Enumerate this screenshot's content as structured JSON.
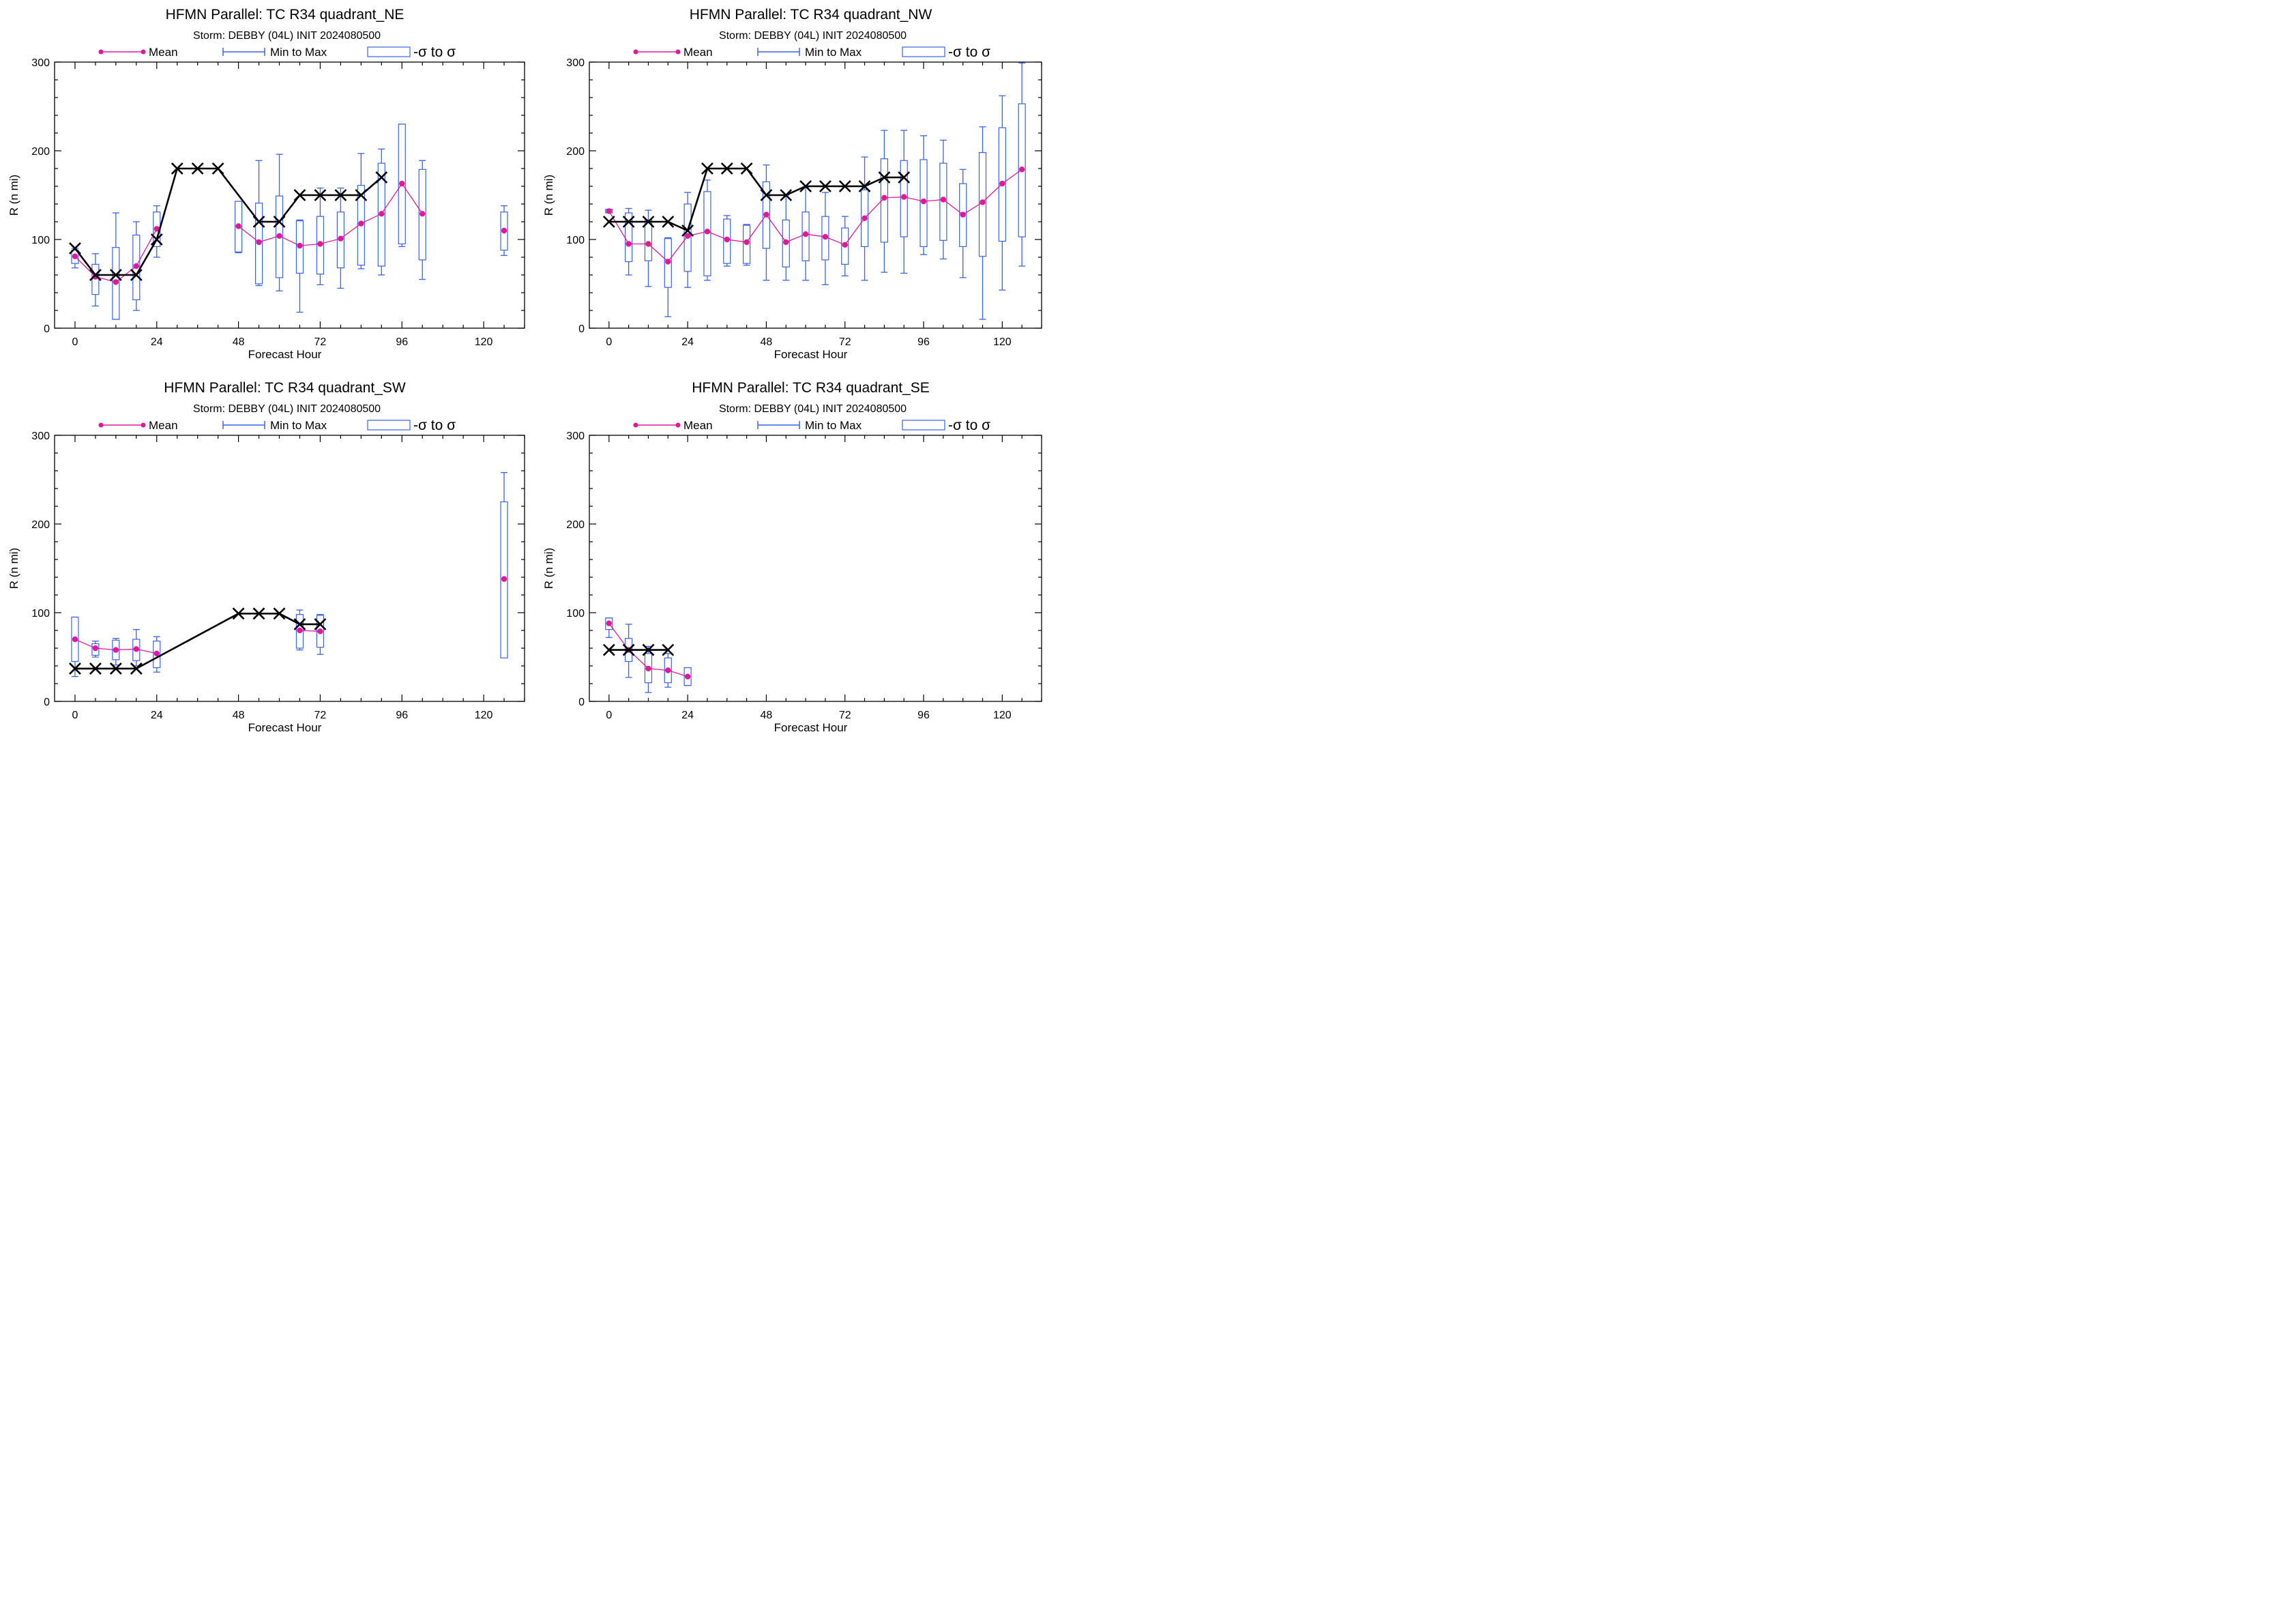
{
  "legend": {
    "mean_label": "Mean",
    "minmax_label": "Min to Max",
    "sigma_label": "-σ to σ"
  },
  "colors": {
    "mean": "#e0199a",
    "box": "#3a62e6",
    "official": "#000000",
    "axis": "#000000"
  },
  "chart_data": [
    {
      "id": "ne",
      "type": "box",
      "title": "HFMN Parallel: TC  R34 quadrant_NE",
      "subtitle": "Storm: DEBBY (04L) INIT 2024080500",
      "xlabel": "Forecast Hour",
      "ylabel": "R (n mi)",
      "xlim": [
        -6,
        132
      ],
      "ylim": [
        0,
        300
      ],
      "xticks": [
        0,
        24,
        48,
        72,
        96,
        120
      ],
      "yticks": [
        0,
        100,
        200,
        300
      ],
      "grid": false,
      "legend_position": "top",
      "series": [
        {
          "name": "Mean",
          "kind": "mean",
          "x": [
            0,
            6,
            12,
            18,
            24,
            48,
            54,
            60,
            66,
            72,
            78,
            84,
            90,
            96,
            102,
            126
          ],
          "y": [
            81,
            58,
            52,
            70,
            112,
            115,
            97,
            104,
            93,
            95,
            101,
            118,
            129,
            163,
            129,
            110
          ]
        },
        {
          "name": "Min to Max",
          "kind": "range",
          "x": [
            0,
            6,
            12,
            18,
            24,
            48,
            54,
            60,
            66,
            72,
            78,
            84,
            90,
            96,
            102,
            126
          ],
          "min": [
            68,
            25,
            10,
            20,
            80,
            85,
            48,
            42,
            18,
            49,
            45,
            67,
            60,
            92,
            55,
            82
          ],
          "max": [
            90,
            84,
            130,
            120,
            138,
            143,
            189,
            196,
            122,
            158,
            158,
            197,
            202,
            230,
            189,
            138
          ]
        },
        {
          "name": "-σ to σ",
          "kind": "sigma",
          "x": [
            0,
            6,
            12,
            18,
            24,
            48,
            54,
            60,
            66,
            72,
            78,
            84,
            90,
            96,
            102,
            126
          ],
          "low": [
            73,
            38,
            10,
            32,
            92,
            86,
            50,
            57,
            62,
            61,
            68,
            71,
            70,
            95,
            77,
            88
          ],
          "high": [
            88,
            72,
            91,
            105,
            131,
            143,
            141,
            149,
            121,
            126,
            131,
            161,
            186,
            230,
            179,
            131
          ]
        },
        {
          "kind": "official",
          "x": [
            0,
            6,
            12,
            18,
            24,
            30,
            36,
            42,
            54,
            60,
            66,
            72,
            78,
            84,
            90
          ],
          "y": [
            90,
            60,
            60,
            60,
            100,
            180,
            180,
            180,
            120,
            120,
            150,
            150,
            150,
            150,
            170
          ]
        }
      ]
    },
    {
      "id": "nw",
      "type": "box",
      "title": "HFMN Parallel: TC  R34 quadrant_NW",
      "subtitle": "Storm: DEBBY (04L) INIT 2024080500",
      "xlabel": "Forecast Hour",
      "ylabel": "R (n mi)",
      "xlim": [
        -6,
        132
      ],
      "ylim": [
        0,
        300
      ],
      "xticks": [
        0,
        24,
        48,
        72,
        96,
        120
      ],
      "yticks": [
        0,
        100,
        200,
        300
      ],
      "grid": false,
      "legend_position": "top",
      "series": [
        {
          "name": "Mean",
          "kind": "mean",
          "x": [
            0,
            6,
            12,
            18,
            24,
            30,
            36,
            42,
            48,
            54,
            60,
            66,
            72,
            78,
            84,
            90,
            96,
            102,
            108,
            114,
            120,
            126
          ],
          "y": [
            132,
            95,
            95,
            75,
            104,
            109,
            100,
            97,
            128,
            97,
            106,
            103,
            94,
            124,
            147,
            148,
            143,
            145,
            128,
            142,
            163,
            179
          ]
        },
        {
          "name": "Min to Max",
          "kind": "range",
          "x": [
            0,
            6,
            12,
            18,
            24,
            30,
            36,
            42,
            48,
            54,
            60,
            66,
            72,
            78,
            84,
            90,
            96,
            102,
            108,
            114,
            120,
            126
          ],
          "min": [
            131,
            60,
            47,
            13,
            46,
            54,
            70,
            71,
            54,
            54,
            54,
            49,
            59,
            54,
            63,
            62,
            83,
            78,
            57,
            10,
            43,
            70
          ],
          "max": [
            134,
            135,
            133,
            102,
            153,
            167,
            127,
            117,
            184,
            150,
            159,
            153,
            126,
            193,
            223,
            223,
            217,
            212,
            179,
            227,
            262,
            299
          ]
        },
        {
          "name": "-σ to σ",
          "kind": "sigma",
          "x": [
            0,
            6,
            12,
            18,
            24,
            30,
            36,
            42,
            48,
            54,
            60,
            66,
            72,
            78,
            84,
            90,
            96,
            102,
            108,
            114,
            120,
            126
          ],
          "low": [
            130,
            75,
            76,
            46,
            64,
            59,
            73,
            73,
            90,
            69,
            76,
            77,
            72,
            92,
            97,
            103,
            92,
            99,
            92,
            81,
            98,
            103
          ],
          "high": [
            134,
            130,
            122,
            101,
            140,
            154,
            123,
            116,
            165,
            122,
            131,
            126,
            113,
            156,
            191,
            189,
            190,
            186,
            163,
            198,
            226,
            253
          ]
        },
        {
          "kind": "official",
          "x": [
            0,
            6,
            12,
            18,
            24,
            30,
            36,
            42,
            48,
            54,
            60,
            66,
            72,
            78,
            84,
            90
          ],
          "y": [
            120,
            120,
            120,
            120,
            110,
            180,
            180,
            180,
            150,
            150,
            160,
            160,
            160,
            160,
            170,
            170
          ]
        }
      ]
    },
    {
      "id": "sw",
      "type": "box",
      "title": "HFMN Parallel: TC  R34 quadrant_SW",
      "subtitle": "Storm: DEBBY (04L) INIT 2024080500",
      "xlabel": "Forecast Hour",
      "ylabel": "R (n mi)",
      "xlim": [
        -6,
        132
      ],
      "ylim": [
        0,
        300
      ],
      "xticks": [
        0,
        24,
        48,
        72,
        96,
        120
      ],
      "yticks": [
        0,
        100,
        200,
        300
      ],
      "grid": false,
      "legend_position": "top",
      "series": [
        {
          "name": "Mean",
          "kind": "mean",
          "x": [
            0,
            6,
            12,
            18,
            24,
            66,
            72,
            126
          ],
          "y": [
            70,
            60,
            58,
            59,
            54,
            80,
            79,
            138
          ]
        },
        {
          "name": "Min to Max",
          "kind": "range",
          "x": [
            0,
            6,
            12,
            18,
            24,
            66,
            72,
            126
          ],
          "min": [
            28,
            50,
            41,
            40,
            33,
            58,
            53,
            68
          ],
          "max": [
            95,
            68,
            71,
            81,
            73,
            103,
            98,
            258
          ]
        },
        {
          "name": "-σ to σ",
          "kind": "sigma",
          "x": [
            0,
            6,
            12,
            18,
            24,
            66,
            72,
            126
          ],
          "low": [
            45,
            52,
            47,
            46,
            38,
            60,
            61,
            49
          ],
          "high": [
            95,
            65,
            69,
            70,
            68,
            98,
            97,
            225
          ]
        },
        {
          "kind": "official",
          "x": [
            0,
            6,
            12,
            18,
            48,
            54,
            60,
            66,
            72
          ],
          "y": [
            37,
            37,
            37,
            37,
            99,
            99,
            99,
            87,
            87
          ]
        }
      ]
    },
    {
      "id": "se",
      "type": "box",
      "title": "HFMN Parallel: TC  R34 quadrant_SE",
      "subtitle": "Storm: DEBBY (04L) INIT 2024080500",
      "xlabel": "Forecast Hour",
      "ylabel": "R (n mi)",
      "xlim": [
        -6,
        132
      ],
      "ylim": [
        0,
        300
      ],
      "xticks": [
        0,
        24,
        48,
        72,
        96,
        120
      ],
      "yticks": [
        0,
        100,
        200,
        300
      ],
      "grid": false,
      "legend_position": "top",
      "series": [
        {
          "name": "Mean",
          "kind": "mean",
          "x": [
            0,
            6,
            12,
            18,
            24
          ],
          "y": [
            88,
            58,
            37,
            35,
            28
          ]
        },
        {
          "name": "Min to Max",
          "kind": "range",
          "x": [
            0,
            6,
            12,
            18,
            24
          ],
          "min": [
            72,
            27,
            10,
            16,
            18
          ],
          "max": [
            94,
            87,
            62,
            54,
            38
          ]
        },
        {
          "name": "-σ to σ",
          "kind": "sigma",
          "x": [
            0,
            6,
            12,
            18,
            24
          ],
          "low": [
            81,
            45,
            21,
            21,
            18
          ],
          "high": [
            94,
            71,
            54,
            49,
            38
          ]
        },
        {
          "kind": "official",
          "x": [
            0,
            6,
            12,
            18
          ],
          "y": [
            58,
            58,
            58,
            58
          ]
        }
      ]
    }
  ]
}
